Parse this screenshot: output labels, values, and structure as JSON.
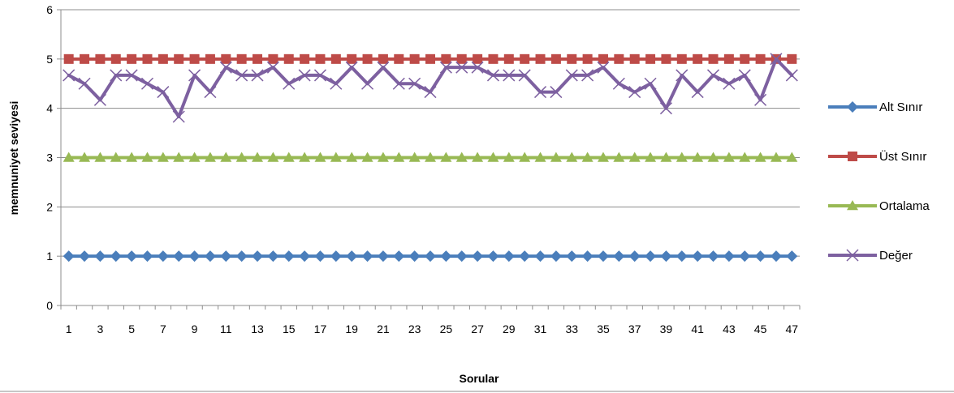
{
  "chart_data": {
    "type": "line",
    "xlabel": "Sorular",
    "ylabel": "memnuniyet seviyesi",
    "ylim": [
      0,
      6
    ],
    "yticks": [
      0,
      1,
      2,
      3,
      4,
      5,
      6
    ],
    "x": [
      1,
      2,
      3,
      4,
      5,
      6,
      7,
      8,
      9,
      10,
      11,
      12,
      13,
      14,
      15,
      16,
      17,
      18,
      19,
      20,
      21,
      22,
      23,
      24,
      25,
      26,
      27,
      28,
      29,
      30,
      31,
      32,
      33,
      34,
      35,
      36,
      37,
      38,
      39,
      40,
      41,
      42,
      43,
      44,
      45,
      46,
      47
    ],
    "xtick_labels": [
      "1",
      "3",
      "5",
      "7",
      "9",
      "11",
      "13",
      "15",
      "17",
      "19",
      "21",
      "23",
      "25",
      "27",
      "29",
      "31",
      "33",
      "35",
      "37",
      "39",
      "41",
      "43",
      "45",
      "47"
    ],
    "grid": "horizontal",
    "legend_position": "right",
    "series": [
      {
        "name": "Alt Sınır",
        "color": "#4a7ebb",
        "marker": "diamond",
        "values": [
          1,
          1,
          1,
          1,
          1,
          1,
          1,
          1,
          1,
          1,
          1,
          1,
          1,
          1,
          1,
          1,
          1,
          1,
          1,
          1,
          1,
          1,
          1,
          1,
          1,
          1,
          1,
          1,
          1,
          1,
          1,
          1,
          1,
          1,
          1,
          1,
          1,
          1,
          1,
          1,
          1,
          1,
          1,
          1,
          1,
          1,
          1
        ]
      },
      {
        "name": "Üst Sınır",
        "color": "#be4b48",
        "marker": "square",
        "values": [
          5,
          5,
          5,
          5,
          5,
          5,
          5,
          5,
          5,
          5,
          5,
          5,
          5,
          5,
          5,
          5,
          5,
          5,
          5,
          5,
          5,
          5,
          5,
          5,
          5,
          5,
          5,
          5,
          5,
          5,
          5,
          5,
          5,
          5,
          5,
          5,
          5,
          5,
          5,
          5,
          5,
          5,
          5,
          5,
          5,
          5,
          5
        ]
      },
      {
        "name": "Ortalama",
        "color": "#98b954",
        "marker": "triangle",
        "values": [
          3,
          3,
          3,
          3,
          3,
          3,
          3,
          3,
          3,
          3,
          3,
          3,
          3,
          3,
          3,
          3,
          3,
          3,
          3,
          3,
          3,
          3,
          3,
          3,
          3,
          3,
          3,
          3,
          3,
          3,
          3,
          3,
          3,
          3,
          3,
          3,
          3,
          3,
          3,
          3,
          3,
          3,
          3,
          3,
          3,
          3,
          3
        ]
      },
      {
        "name": "Değer",
        "color": "#7d60a0",
        "marker": "x",
        "values": [
          4.67,
          4.5,
          4.17,
          4.67,
          4.67,
          4.5,
          4.33,
          3.83,
          4.67,
          4.33,
          4.83,
          4.67,
          4.67,
          4.83,
          4.5,
          4.67,
          4.67,
          4.5,
          4.83,
          4.5,
          4.83,
          4.5,
          4.5,
          4.33,
          4.83,
          4.83,
          4.83,
          4.67,
          4.67,
          4.67,
          4.33,
          4.33,
          4.67,
          4.67,
          4.83,
          4.5,
          4.33,
          4.5,
          4.0,
          4.67,
          4.33,
          4.67,
          4.5,
          4.67,
          4.17,
          5.0,
          4.67
        ]
      }
    ]
  }
}
